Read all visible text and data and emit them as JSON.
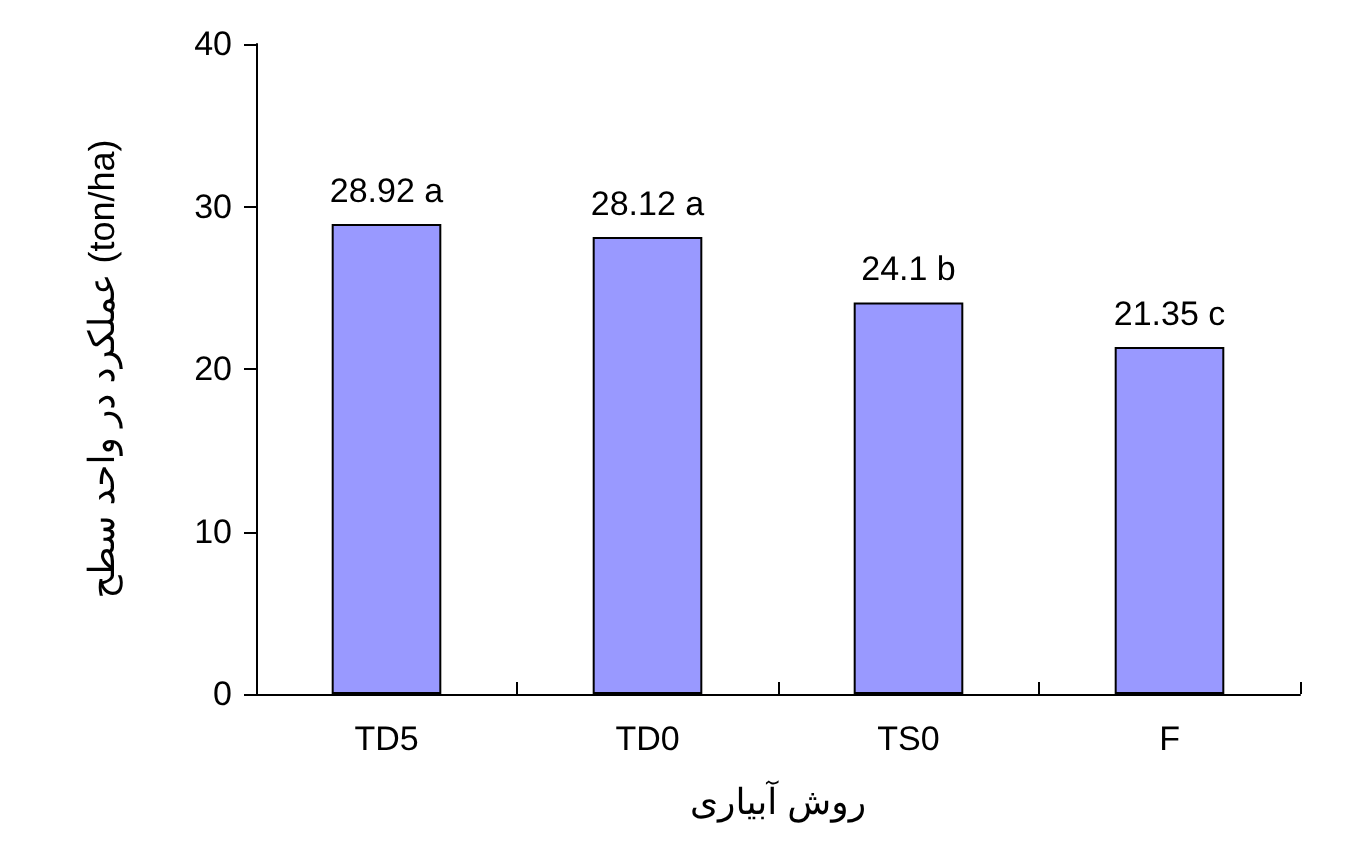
{
  "chart_data": {
    "type": "bar",
    "xlabel": "روش آبیاری",
    "ylabel": "عملکرد در واحد سطح (ton/ha)",
    "categories": [
      "TD5",
      "TD0",
      "TS0",
      "F"
    ],
    "values": [
      28.92,
      28.12,
      24.1,
      21.35
    ],
    "value_labels": [
      "28.92 a",
      "28.12 a",
      "24.1 b",
      "21.35 c"
    ],
    "color": "#9999ff",
    "ylim": [
      0,
      40
    ],
    "yticks": [
      0,
      10,
      20,
      30,
      40
    ],
    "grid": false
  }
}
